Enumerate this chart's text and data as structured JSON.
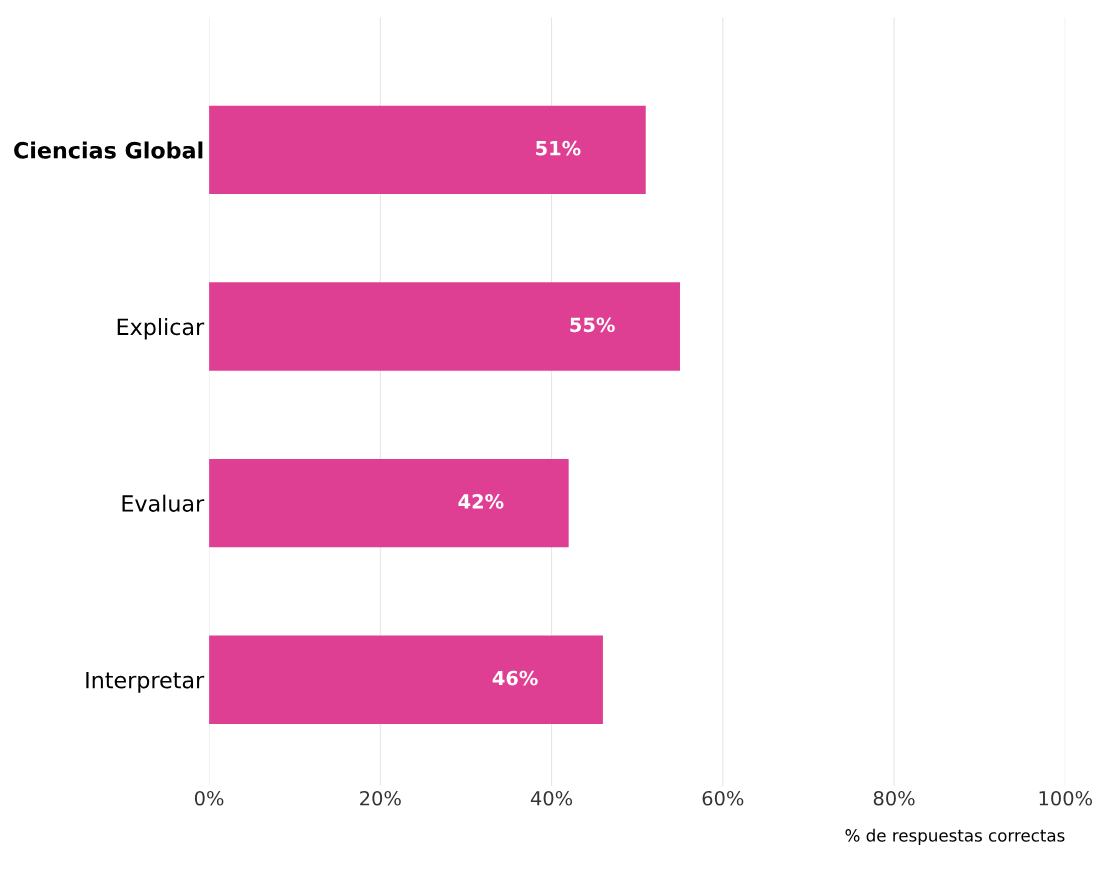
{
  "chart_data": {
    "type": "bar",
    "orientation": "horizontal",
    "categories": [
      "Ciencias Global",
      "Explicar",
      "Evaluar",
      "Interpretar"
    ],
    "values": [
      51,
      55,
      42,
      46
    ],
    "color": "#df3f93",
    "value_labels": [
      "51%",
      "55%",
      "42%",
      "46%"
    ],
    "xlim": [
      0,
      100
    ],
    "xticks": [
      {
        "value": 0,
        "label": "0%"
      },
      {
        "value": 20,
        "label": "20%"
      },
      {
        "value": 40,
        "label": "40%"
      },
      {
        "value": 60,
        "label": "60%"
      },
      {
        "value": 80,
        "label": "80%"
      },
      {
        "value": 100,
        "label": "100%"
      }
    ],
    "xlabel": "% de respuestas correctas",
    "grid": "x",
    "legend": false
  }
}
